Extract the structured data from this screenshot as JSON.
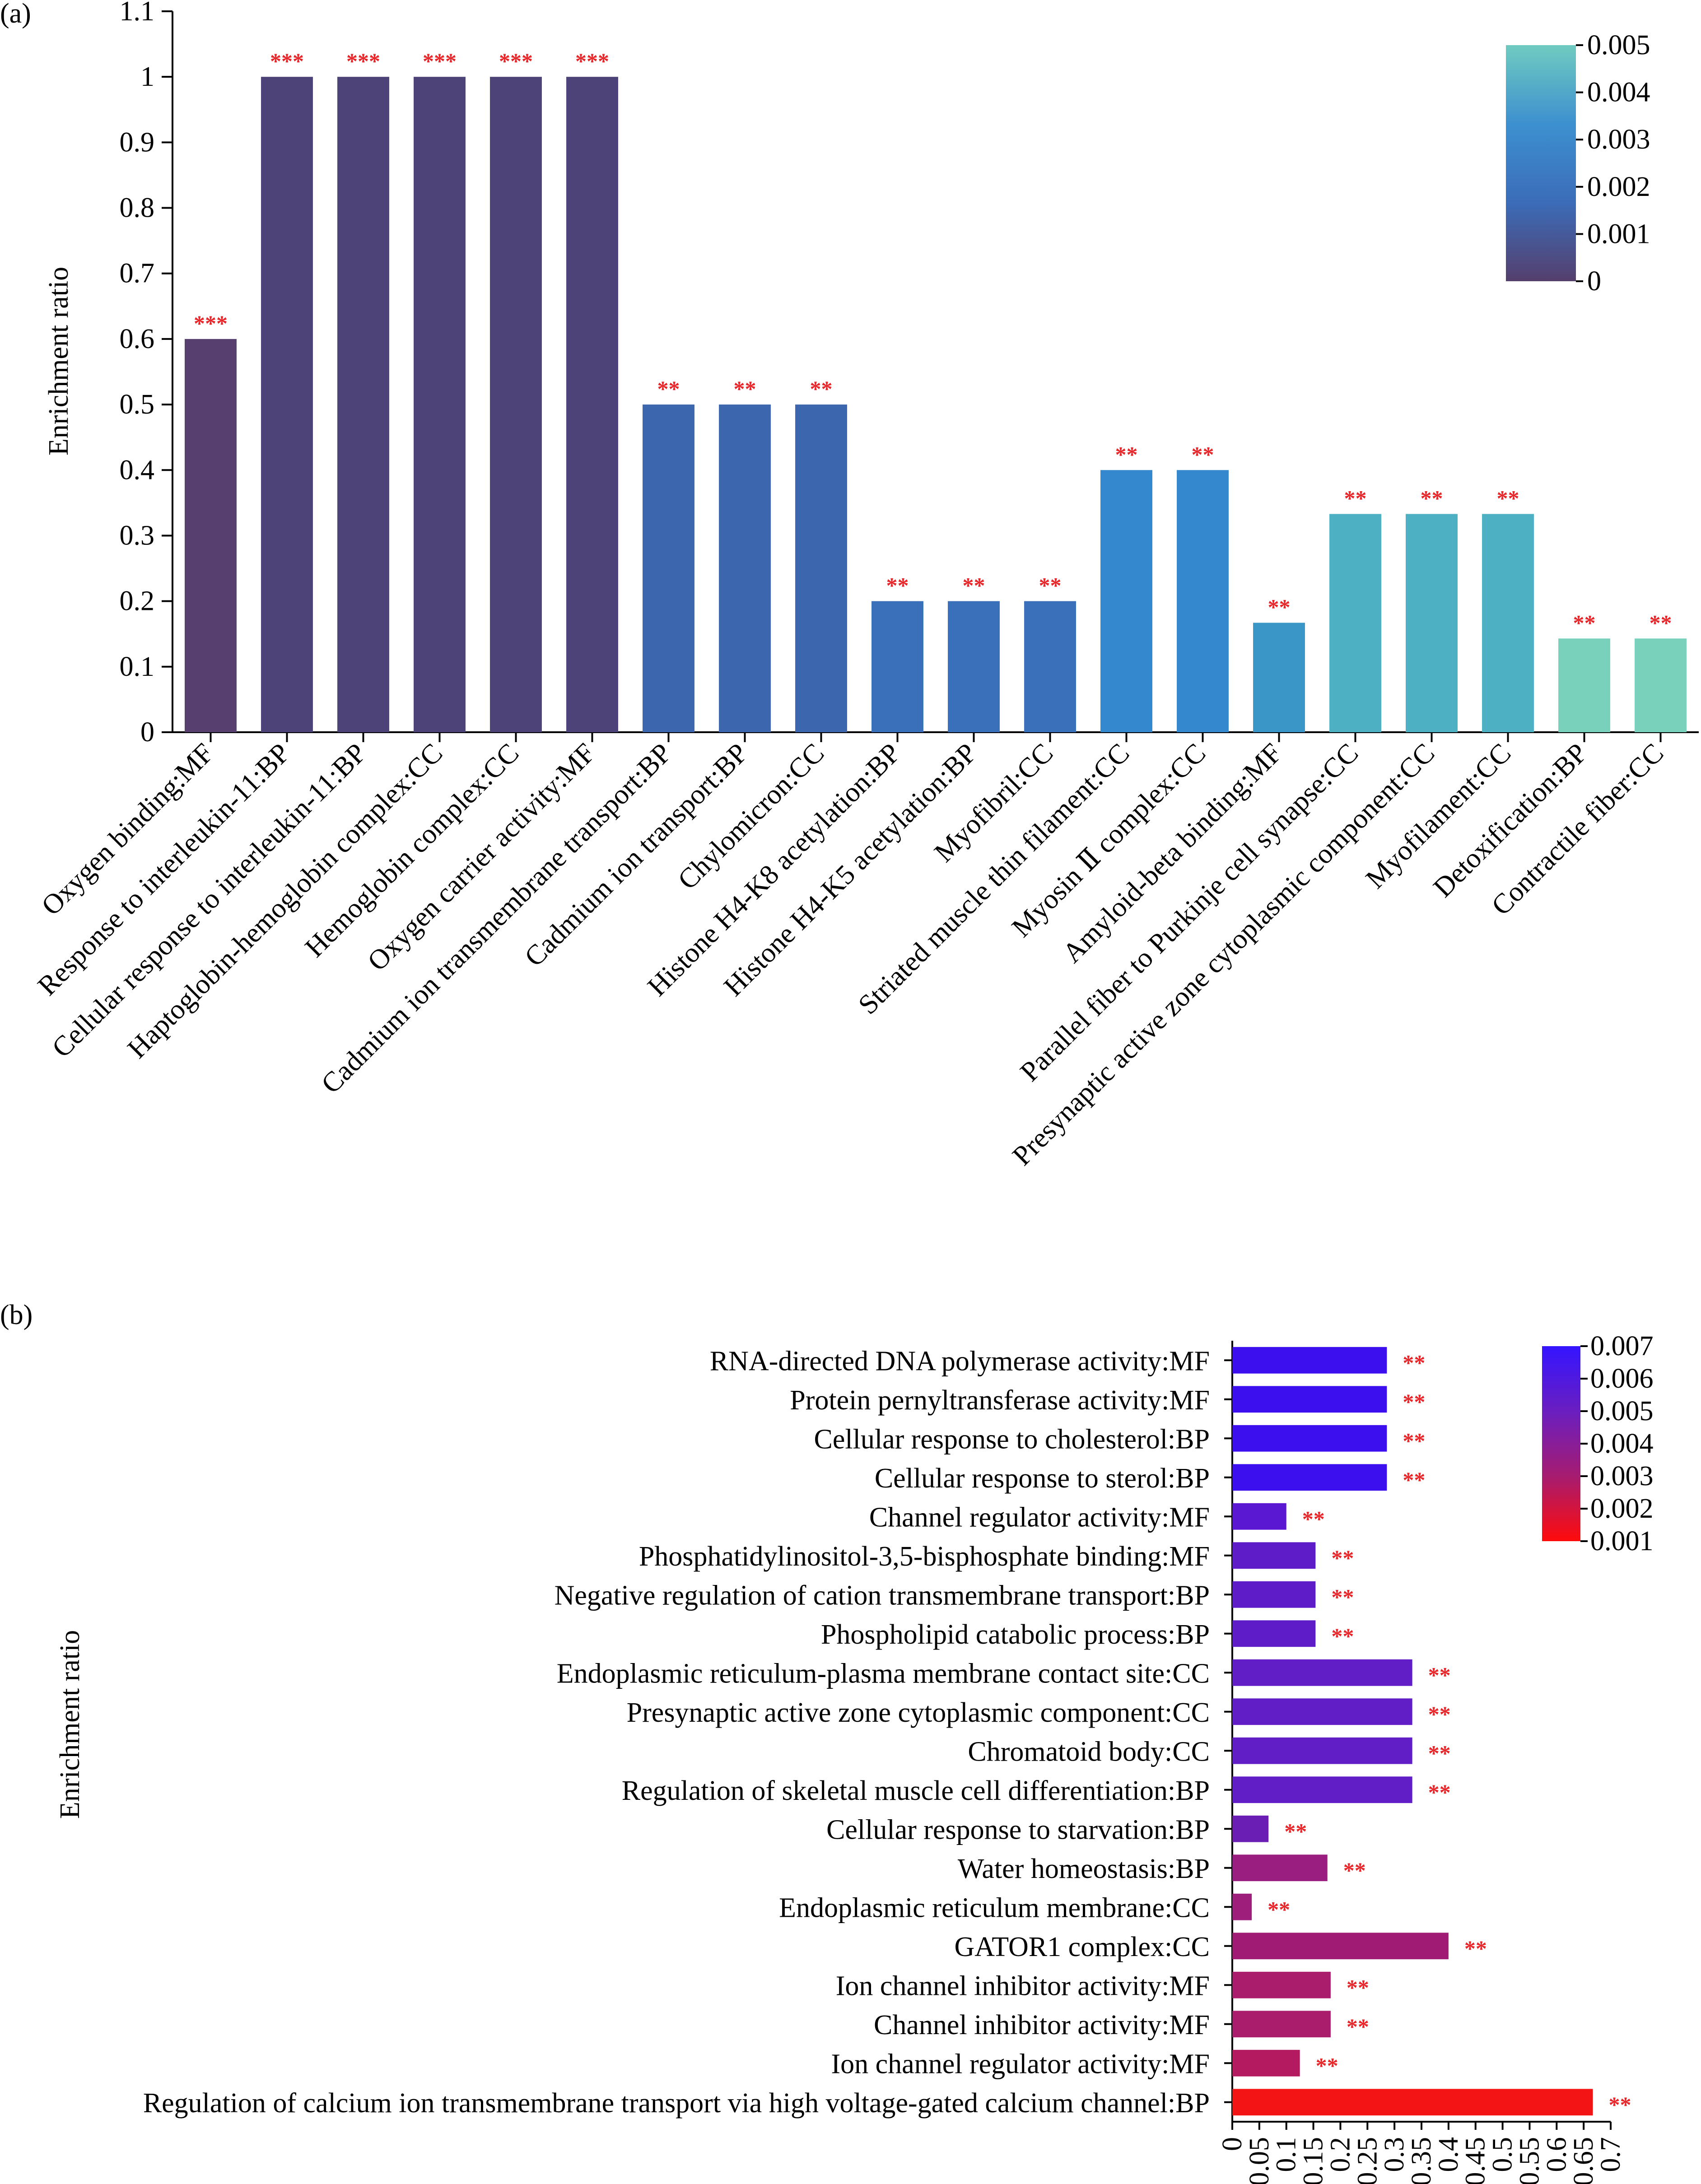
{
  "chart_data": [
    {
      "panel_label": "(a)",
      "type": "bar",
      "orientation": "vertical",
      "ylabel": "Enrichment  ratio",
      "ylim": [
        0,
        1.1
      ],
      "yticks": [
        "0",
        "0.1",
        "0.2",
        "0.3",
        "0.4",
        "0.5",
        "0.6",
        "0.7",
        "0.8",
        "0.9",
        "1",
        "1.1"
      ],
      "categories": [
        "Oxygen binding:MF",
        "Response to interleukin-11:BP",
        "Cellular response to interleukin-11:BP",
        "Haptoglobin-hemoglobin complex:CC",
        "Hemoglobin complex:CC",
        "Oxygen carrier activity:MF",
        "Cadmium ion transmembrane transport:BP",
        "Cadmium ion transport:BP",
        "Chylomicron:CC",
        "Histone H4-K8 acetylation:BP",
        "Histone H4-K5 acetylation:BP",
        "Myofibril:CC",
        "Striated muscle thin filament:CC",
        "Myosin Ⅱ complex:CC",
        "Amyloid-beta binding:MF",
        "Parallel fiber to Purkinje cell synapse:CC",
        "Presynaptic active zone cytoplasmic component:CC",
        "Myofilament:CC",
        "Detoxification:BP",
        "Contractile fiber:CC"
      ],
      "values": [
        0.6,
        1,
        1,
        1,
        1,
        1,
        0.5,
        0.5,
        0.5,
        0.2,
        0.2,
        0.2,
        0.4,
        0.4,
        0.167,
        0.333,
        0.333,
        0.333,
        0.143,
        0.143
      ],
      "significance": [
        "***",
        "***",
        "***",
        "***",
        "***",
        "***",
        "**",
        "**",
        "**",
        "**",
        "**",
        "**",
        "**",
        "**",
        "**",
        "**",
        "**",
        "**",
        "**",
        "**"
      ],
      "bar_colors": [
        "#57406f",
        "#4e4379",
        "#4e4379",
        "#4e4379",
        "#4e4379",
        "#4e4379",
        "#3c66ad",
        "#3c66ad",
        "#3c66ad",
        "#3a6fba",
        "#3a6fba",
        "#3a6fba",
        "#3488cd",
        "#3488cd",
        "#3a96c7",
        "#4eb0c3",
        "#4eb0c3",
        "#4eb0c3",
        "#79d1bb",
        "#79d1bb"
      ],
      "colorbar": {
        "ticks": [
          "0",
          "0.001",
          "0.002",
          "0.003",
          "0.004",
          "0.005"
        ],
        "colors": [
          "#553f6d",
          "#3b6cb8",
          "#3d90cf",
          "#6fcbc0"
        ]
      }
    },
    {
      "panel_label": "(b)",
      "type": "bar",
      "orientation": "horizontal",
      "ylabel": "Enrichment  ratio",
      "xlim": [
        0,
        0.7
      ],
      "xticks": [
        "0",
        "0.05",
        "0.1",
        "0.15",
        "0.2",
        "0.25",
        "0.3",
        "0.35",
        "0.4",
        "0.45",
        "0.5",
        "0.55",
        "0.6",
        "0.65",
        "0.7"
      ],
      "categories": [
        "RNA-directed DNA polymerase activity:MF",
        "Protein pernyltransferase  activity:MF",
        "Cellular response to cholesterol:BP",
        "Cellular response to sterol:BP",
        "Channel regulator activity:MF",
        "Phosphatidylinositol-3,5-bisphosphate binding:MF",
        "Negative regulation of cation transmembrane transport:BP",
        "Phospholipid catabolic process:BP",
        "Endoplasmic reticulum-plasma membrane contact site:CC",
        "Presynaptic active zone cytoplasmic component:CC",
        "Chromatoid body:CC",
        "Regulation of skeletal muscle cell differentiation:BP",
        "Cellular response to starvation:BP",
        "Water homeostasis:BP",
        "Endoplasmic reticulum membrane:CC",
        "GATOR1 complex:CC",
        "Ion channel inhibitor activity:MF",
        "Channel inhibitor activity:MF",
        "Ion channel regulator activity:MF",
        "Regulation of calcium ion transmembrane transport via high voltage-gated calcium channel:BP"
      ],
      "values": [
        0.286,
        0.286,
        0.286,
        0.286,
        0.1,
        0.154,
        0.154,
        0.154,
        0.333,
        0.333,
        0.333,
        0.333,
        0.067,
        0.176,
        0.036,
        0.4,
        0.182,
        0.182,
        0.125,
        0.667
      ],
      "significance": [
        "**",
        "**",
        "**",
        "**",
        "**",
        "**",
        "**",
        "**",
        "**",
        "**",
        "**",
        "**",
        "**",
        "**",
        "**",
        "**",
        "**",
        "**",
        "**",
        "**"
      ],
      "bar_colors": [
        "#3c10ee",
        "#3c10ee",
        "#3c10ee",
        "#3c10ee",
        "#5a18d2",
        "#5e1cc8",
        "#5e1cc8",
        "#5e1cc8",
        "#621ec6",
        "#621ec6",
        "#621ec6",
        "#621ec6",
        "#6a1eb4",
        "#9a1e80",
        "#9e1e7c",
        "#a01c74",
        "#aa1c6c",
        "#aa1c6c",
        "#b41a60",
        "#f31515"
      ],
      "colorbar": {
        "ticks": [
          "0.001",
          "0.002",
          "0.003",
          "0.004",
          "0.005",
          "0.006",
          "0.007"
        ],
        "colors": [
          "#ff0b0b",
          "#a61c70",
          "#6a1ec0",
          "#3414ff"
        ]
      }
    }
  ]
}
